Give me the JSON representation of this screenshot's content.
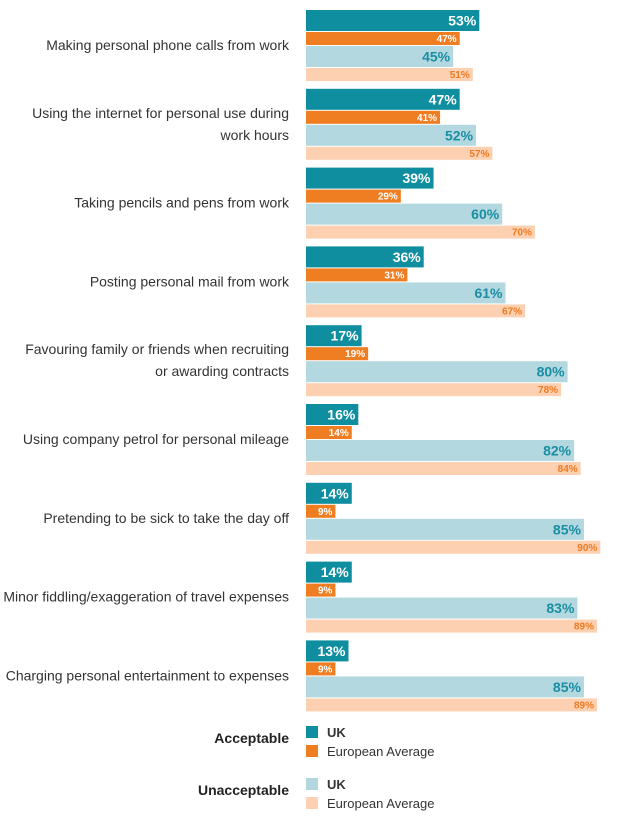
{
  "chart_data": {
    "type": "bar",
    "orientation": "horizontal",
    "categories": [
      [
        "Making personal phone calls from work"
      ],
      [
        "Using the internet for personal use during",
        "work hours"
      ],
      [
        "Taking pencils and pens from work"
      ],
      [
        "Posting personal mail from work"
      ],
      [
        "Favouring family or friends when recruiting",
        "or awarding contracts"
      ],
      [
        "Using company petrol for personal mileage"
      ],
      [
        "Pretending to be sick to take the day off"
      ],
      [
        "Minor fiddling/exaggeration of travel expenses"
      ],
      [
        "Charging personal entertainment to expenses"
      ]
    ],
    "series": [
      {
        "group": "Acceptable",
        "name": "UK",
        "color": "#0f8ea0",
        "label_color": "#ffffff",
        "values": [
          53,
          47,
          39,
          36,
          17,
          16,
          14,
          14,
          13
        ]
      },
      {
        "group": "Acceptable",
        "name": "European Average",
        "color": "#ef7d22",
        "label_color": "#ffffff",
        "values": [
          47,
          41,
          29,
          31,
          19,
          14,
          9,
          9,
          9
        ]
      },
      {
        "group": "Unacceptable",
        "name": "UK",
        "color": "#b3d8df",
        "label_color": "#1a8ea3",
        "values": [
          45,
          52,
          60,
          61,
          80,
          82,
          85,
          83,
          85
        ]
      },
      {
        "group": "Unacceptable",
        "name": "European Average",
        "color": "#fcd0b0",
        "label_color": "#f07a21",
        "values": [
          51,
          57,
          70,
          67,
          78,
          84,
          90,
          89,
          89
        ]
      }
    ],
    "value_suffix": "%",
    "xlim": [
      0,
      100
    ],
    "grid": false,
    "legend": {
      "placement": "bottom",
      "groups": [
        {
          "title": "Acceptable",
          "items": [
            {
              "label": "UK",
              "color": "#0f8ea0"
            },
            {
              "label": "European Average",
              "color": "#ef7d22"
            }
          ]
        },
        {
          "title": "Unacceptable",
          "items": [
            {
              "label": "UK",
              "color": "#b3d8df"
            },
            {
              "label": "European Average",
              "color": "#fcd0b0"
            }
          ]
        }
      ]
    }
  }
}
